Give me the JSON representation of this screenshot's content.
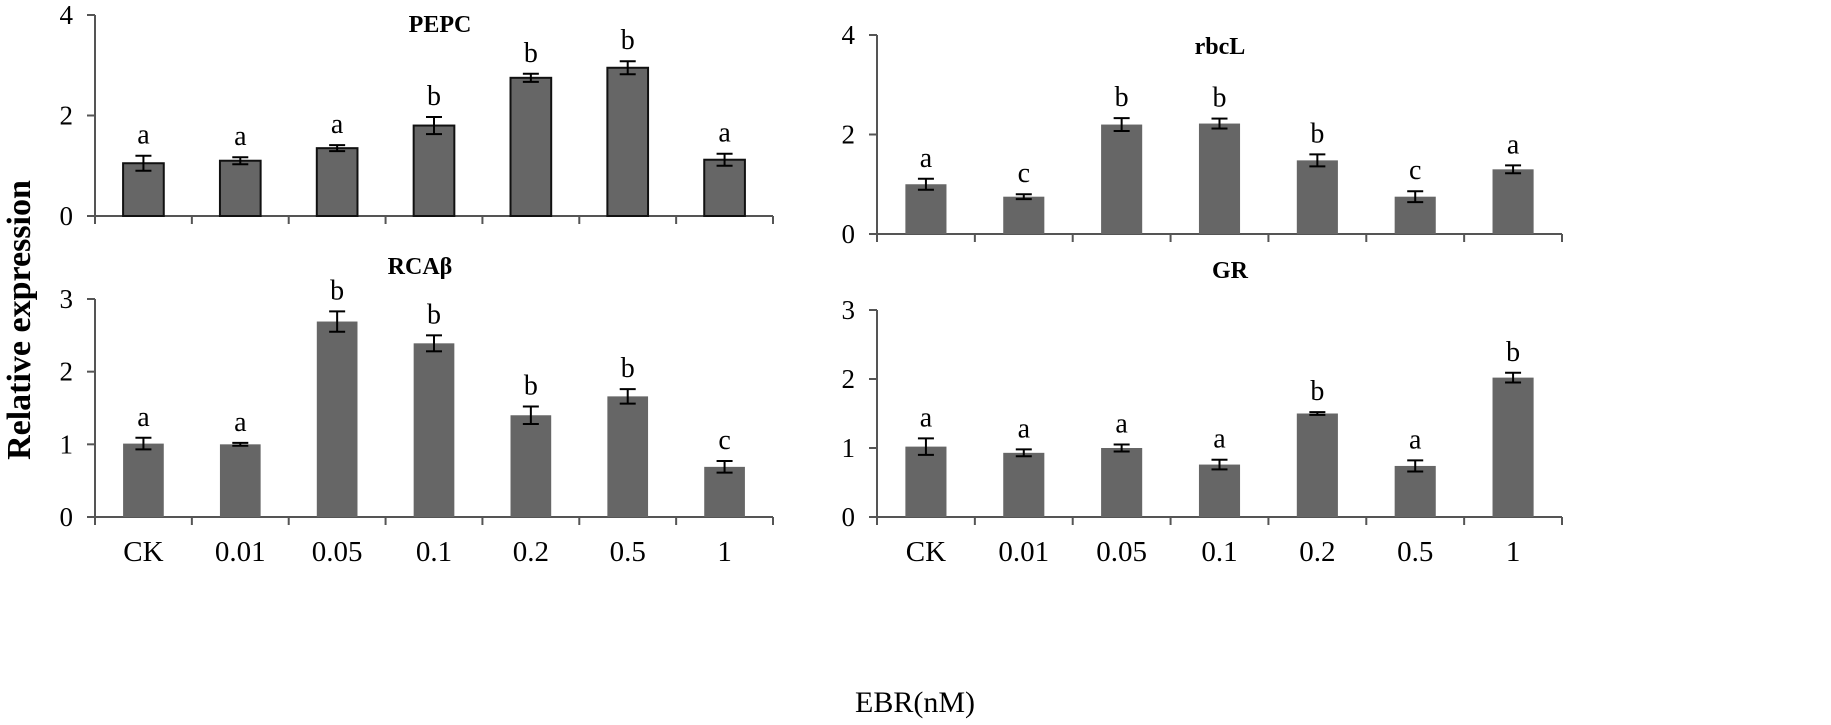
{
  "figure": {
    "ylabel": "Relative expression",
    "xlabel": "EBR(nM)"
  },
  "colors": {
    "bar": "#666666",
    "axis": "#555555"
  },
  "chart_data": [
    {
      "type": "bar",
      "title": "PEPC",
      "categories": [
        "CK",
        "0.01",
        "0.05",
        "0.1",
        "0.2",
        "0.5",
        "1"
      ],
      "values": [
        1.05,
        1.1,
        1.35,
        1.8,
        2.75,
        2.95,
        1.12
      ],
      "errors": [
        0.15,
        0.07,
        0.06,
        0.17,
        0.08,
        0.13,
        0.12
      ],
      "letters": [
        "a",
        "a",
        "a",
        "b",
        "b",
        "b",
        "a"
      ],
      "ylim": [
        0,
        4
      ],
      "yticks": [
        "0",
        "2",
        "4"
      ],
      "show_category_labels": false
    },
    {
      "type": "bar",
      "title": "rbcL",
      "categories": [
        "CK",
        "0.01",
        "0.05",
        "0.1",
        "0.2",
        "0.5",
        "1"
      ],
      "values": [
        1.0,
        0.75,
        2.2,
        2.22,
        1.48,
        0.75,
        1.3
      ],
      "errors": [
        0.11,
        0.05,
        0.13,
        0.1,
        0.12,
        0.11,
        0.08
      ],
      "letters": [
        "a",
        "c",
        "b",
        "b",
        "b",
        "c",
        "a"
      ],
      "ylim": [
        0,
        4
      ],
      "yticks": [
        "0",
        "2",
        "4"
      ],
      "show_category_labels": false
    },
    {
      "type": "bar",
      "title": "RCAβ",
      "categories": [
        "CK",
        "0.01",
        "0.05",
        "0.1",
        "0.2",
        "0.5",
        "1"
      ],
      "values": [
        1.01,
        1.0,
        2.69,
        2.39,
        1.4,
        1.66,
        0.69
      ],
      "errors": [
        0.08,
        0.02,
        0.14,
        0.11,
        0.12,
        0.1,
        0.08
      ],
      "letters": [
        "a",
        "a",
        "b",
        "b",
        "b",
        "b",
        "c"
      ],
      "ylim": [
        0,
        3
      ],
      "yticks": [
        "0",
        "1",
        "2",
        "3"
      ],
      "show_category_labels": true
    },
    {
      "type": "bar",
      "title": "GR",
      "categories": [
        "CK",
        "0.01",
        "0.05",
        "0.1",
        "0.2",
        "0.5",
        "1"
      ],
      "values": [
        1.02,
        0.93,
        1.0,
        0.76,
        1.5,
        0.74,
        2.02
      ],
      "errors": [
        0.12,
        0.05,
        0.05,
        0.07,
        0.02,
        0.08,
        0.07
      ],
      "letters": [
        "a",
        "a",
        "a",
        "a",
        "b",
        "a",
        "b"
      ],
      "ylim": [
        0,
        3
      ],
      "yticks": [
        "0",
        "1",
        "2",
        "3"
      ],
      "show_category_labels": true
    }
  ]
}
